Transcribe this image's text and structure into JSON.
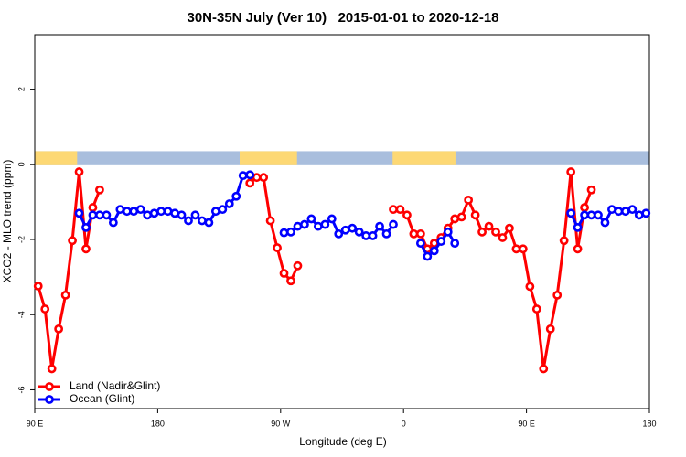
{
  "chart_data": {
    "type": "line",
    "title": "30N-35N July (Ver 10)   2015-01-01 to 2020-12-18",
    "x_label": "Longitude (deg E)",
    "y_label": "XCO2 - MLO trend (ppm)",
    "xlim": [
      90,
      540
    ],
    "ylim": [
      -6.5,
      3.45
    ],
    "xticks": [
      {
        "value": 90,
        "label": "90 E"
      },
      180,
      {
        "value": 270,
        "label": "90 W"
      },
      {
        "value": 360,
        "label": "0"
      },
      {
        "value": 450,
        "label": "90 E"
      },
      {
        "value": 540,
        "label": "180"
      }
    ],
    "yticks": [
      -6,
      -4,
      -2,
      0,
      2
    ],
    "legend": "bottomleft",
    "mask": {
      "ylim": [
        0,
        0.35
      ],
      "land_color": "#fdd874",
      "ocean_color": "#a9bedd",
      "land": [
        [
          90,
          121
        ],
        [
          240,
          282
        ],
        [
          352,
          398
        ]
      ]
    },
    "x": [
      92.5,
      97.5,
      102.5,
      107.5,
      112.5,
      117.5,
      122.5,
      127.5,
      132.5,
      137.5,
      142.5,
      147.5,
      152.5,
      157.5,
      162.5,
      167.5,
      172.5,
      177.5,
      182.5,
      187.5,
      192.5,
      197.5,
      202.5,
      207.5,
      212.5,
      217.5,
      222.5,
      227.5,
      232.5,
      237.5,
      242.5,
      247.5,
      252.5,
      257.5,
      262.5,
      267.5,
      272.5,
      277.5,
      282.5,
      287.5,
      292.5,
      297.5,
      302.5,
      307.5,
      312.5,
      317.5,
      322.5,
      327.5,
      332.5,
      337.5,
      342.5,
      347.5,
      352.5,
      357.5,
      362.5,
      367.5,
      372.5,
      377.5,
      382.5,
      387.5,
      392.5,
      397.5,
      402.5,
      407.5,
      412.5,
      417.5,
      422.5,
      427.5,
      432.5,
      437.5,
      442.5,
      447.5,
      452.5,
      457.5,
      462.5,
      467.5,
      472.5,
      477.5,
      482.5,
      487.5,
      492.5,
      497.5,
      502.5,
      507.5,
      512.5,
      517.5,
      522.5,
      527.5,
      532.5,
      537.5
    ],
    "series": [
      {
        "name": "Land (Nadir&Glint)",
        "color": "#ff0000",
        "values": [
          -3.24,
          -3.85,
          -5.44,
          -4.38,
          -3.48,
          -2.03,
          -0.2,
          -2.25,
          -1.15,
          -0.68,
          null,
          null,
          null,
          null,
          null,
          null,
          null,
          null,
          null,
          null,
          null,
          null,
          null,
          null,
          null,
          null,
          null,
          null,
          null,
          null,
          null,
          -0.5,
          -0.35,
          -0.35,
          -1.5,
          -2.22,
          -2.9,
          -3.1,
          -2.7,
          null,
          null,
          null,
          null,
          null,
          null,
          null,
          null,
          null,
          null,
          null,
          null,
          null,
          -1.2,
          -1.2,
          -1.35,
          -1.85,
          -1.85,
          -2.25,
          -2.1,
          -1.95,
          -1.7,
          -1.45,
          -1.4,
          -0.95,
          -1.35,
          -1.8,
          -1.65,
          -1.8,
          -1.95,
          -1.7,
          -2.25,
          -2.25,
          -3.25,
          -3.85,
          -5.44,
          -4.38,
          -3.48,
          -2.03,
          -0.2,
          -2.25,
          -1.15,
          -0.68,
          null,
          null,
          null,
          null,
          null,
          null,
          null,
          null
        ]
      },
      {
        "name": "Ocean (Glint)",
        "color": "#0000ff",
        "values": [
          null,
          null,
          null,
          null,
          null,
          null,
          -1.3,
          -1.68,
          -1.35,
          -1.35,
          -1.35,
          -1.55,
          -1.2,
          -1.25,
          -1.25,
          -1.2,
          -1.35,
          -1.3,
          -1.25,
          -1.25,
          -1.3,
          -1.35,
          -1.5,
          -1.35,
          -1.5,
          -1.55,
          -1.25,
          -1.2,
          -1.05,
          -0.85,
          -0.3,
          -0.28,
          null,
          null,
          null,
          null,
          -1.82,
          -1.8,
          -1.65,
          -1.6,
          -1.45,
          -1.65,
          -1.6,
          -1.45,
          -1.85,
          -1.75,
          -1.7,
          -1.8,
          -1.9,
          -1.9,
          -1.65,
          -1.85,
          -1.6,
          null,
          null,
          null,
          -2.1,
          -2.45,
          -2.3,
          -2.05,
          -1.8,
          -2.1,
          null,
          null,
          null,
          null,
          null,
          null,
          null,
          null,
          null,
          null,
          null,
          null,
          null,
          null,
          null,
          null,
          -1.3,
          -1.68,
          -1.35,
          -1.35,
          -1.35,
          -1.55,
          -1.2,
          -1.25,
          -1.25,
          -1.2,
          -1.35,
          -1.3
        ]
      }
    ]
  }
}
